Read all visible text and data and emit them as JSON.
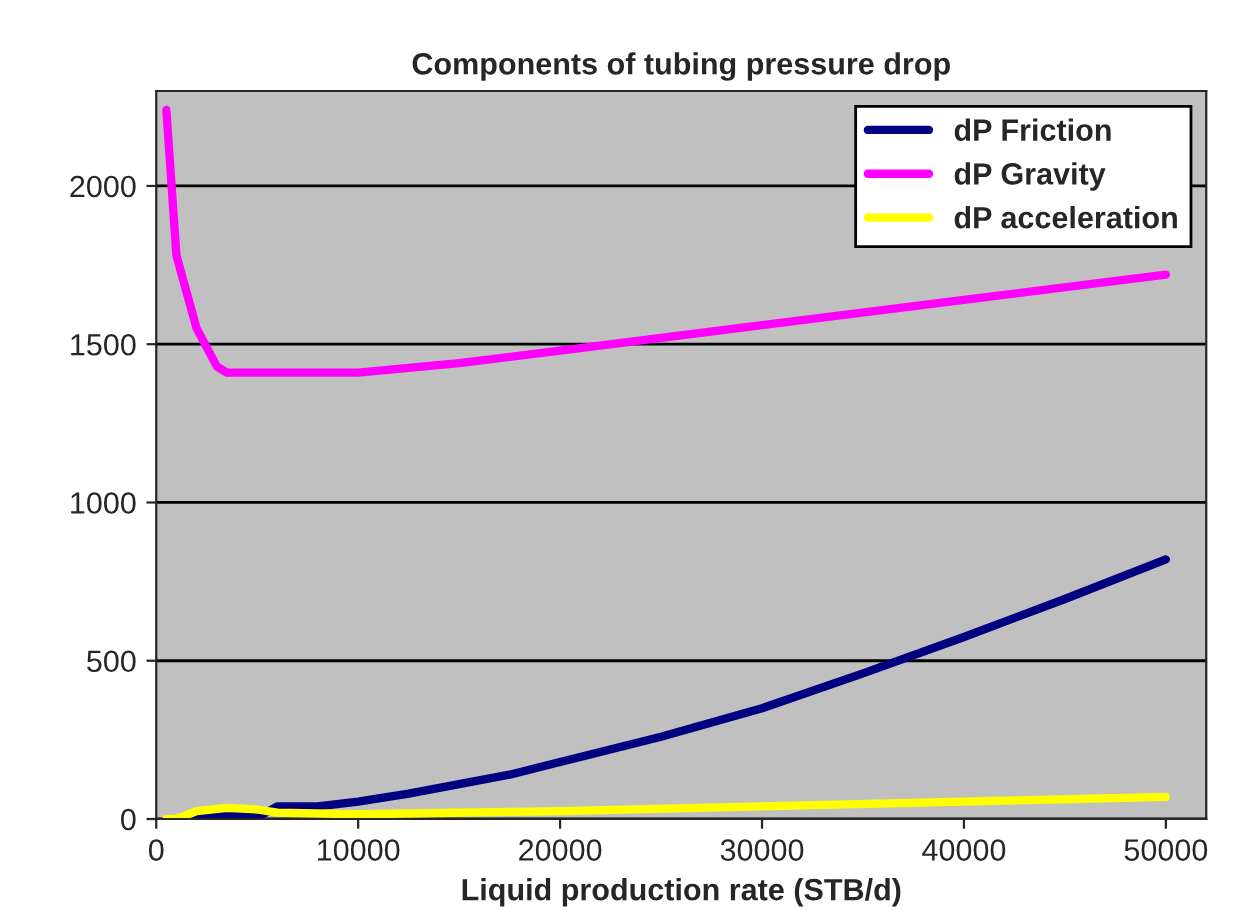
{
  "chart_data": {
    "type": "line",
    "title": "Components of tubing pressure drop",
    "xlabel": "Liquid production rate (STB/d)",
    "xlim": [
      0,
      52000
    ],
    "xticks": [
      0,
      10000,
      20000,
      30000,
      40000,
      50000
    ],
    "ylim": [
      0,
      2300
    ],
    "yticks": [
      0,
      500,
      1000,
      1500,
      2000
    ],
    "grid": "y",
    "legend": "top right",
    "marker": "none",
    "line_style": "solid",
    "series": [
      {
        "name": "dP Friction",
        "color": "#000080",
        "x": [
          1500,
          2500,
          3500,
          5000,
          6000,
          8000,
          10000,
          12500,
          15000,
          17500,
          20000,
          25000,
          30000,
          35000,
          40000,
          45000,
          50000
        ],
        "values": [
          0,
          10,
          15,
          5,
          40,
          40,
          55,
          80,
          110,
          140,
          180,
          260,
          350,
          460,
          575,
          695,
          820
        ]
      },
      {
        "name": "dP Gravity",
        "color": "#ff00ff",
        "x": [
          500,
          1000,
          2000,
          3000,
          3500,
          10000,
          15000,
          20000,
          25000,
          30000,
          40000,
          50000
        ],
        "values": [
          2240,
          1780,
          1550,
          1430,
          1410,
          1410,
          1440,
          1480,
          1520,
          1560,
          1640,
          1720
        ]
      },
      {
        "name": "dP acceleration",
        "color": "#ffff00",
        "x": [
          500,
          1000,
          2000,
          3500,
          5000,
          6000,
          10000,
          20000,
          30000,
          40000,
          50000
        ],
        "values": [
          0,
          0,
          25,
          35,
          30,
          20,
          15,
          25,
          40,
          55,
          70
        ]
      }
    ]
  }
}
